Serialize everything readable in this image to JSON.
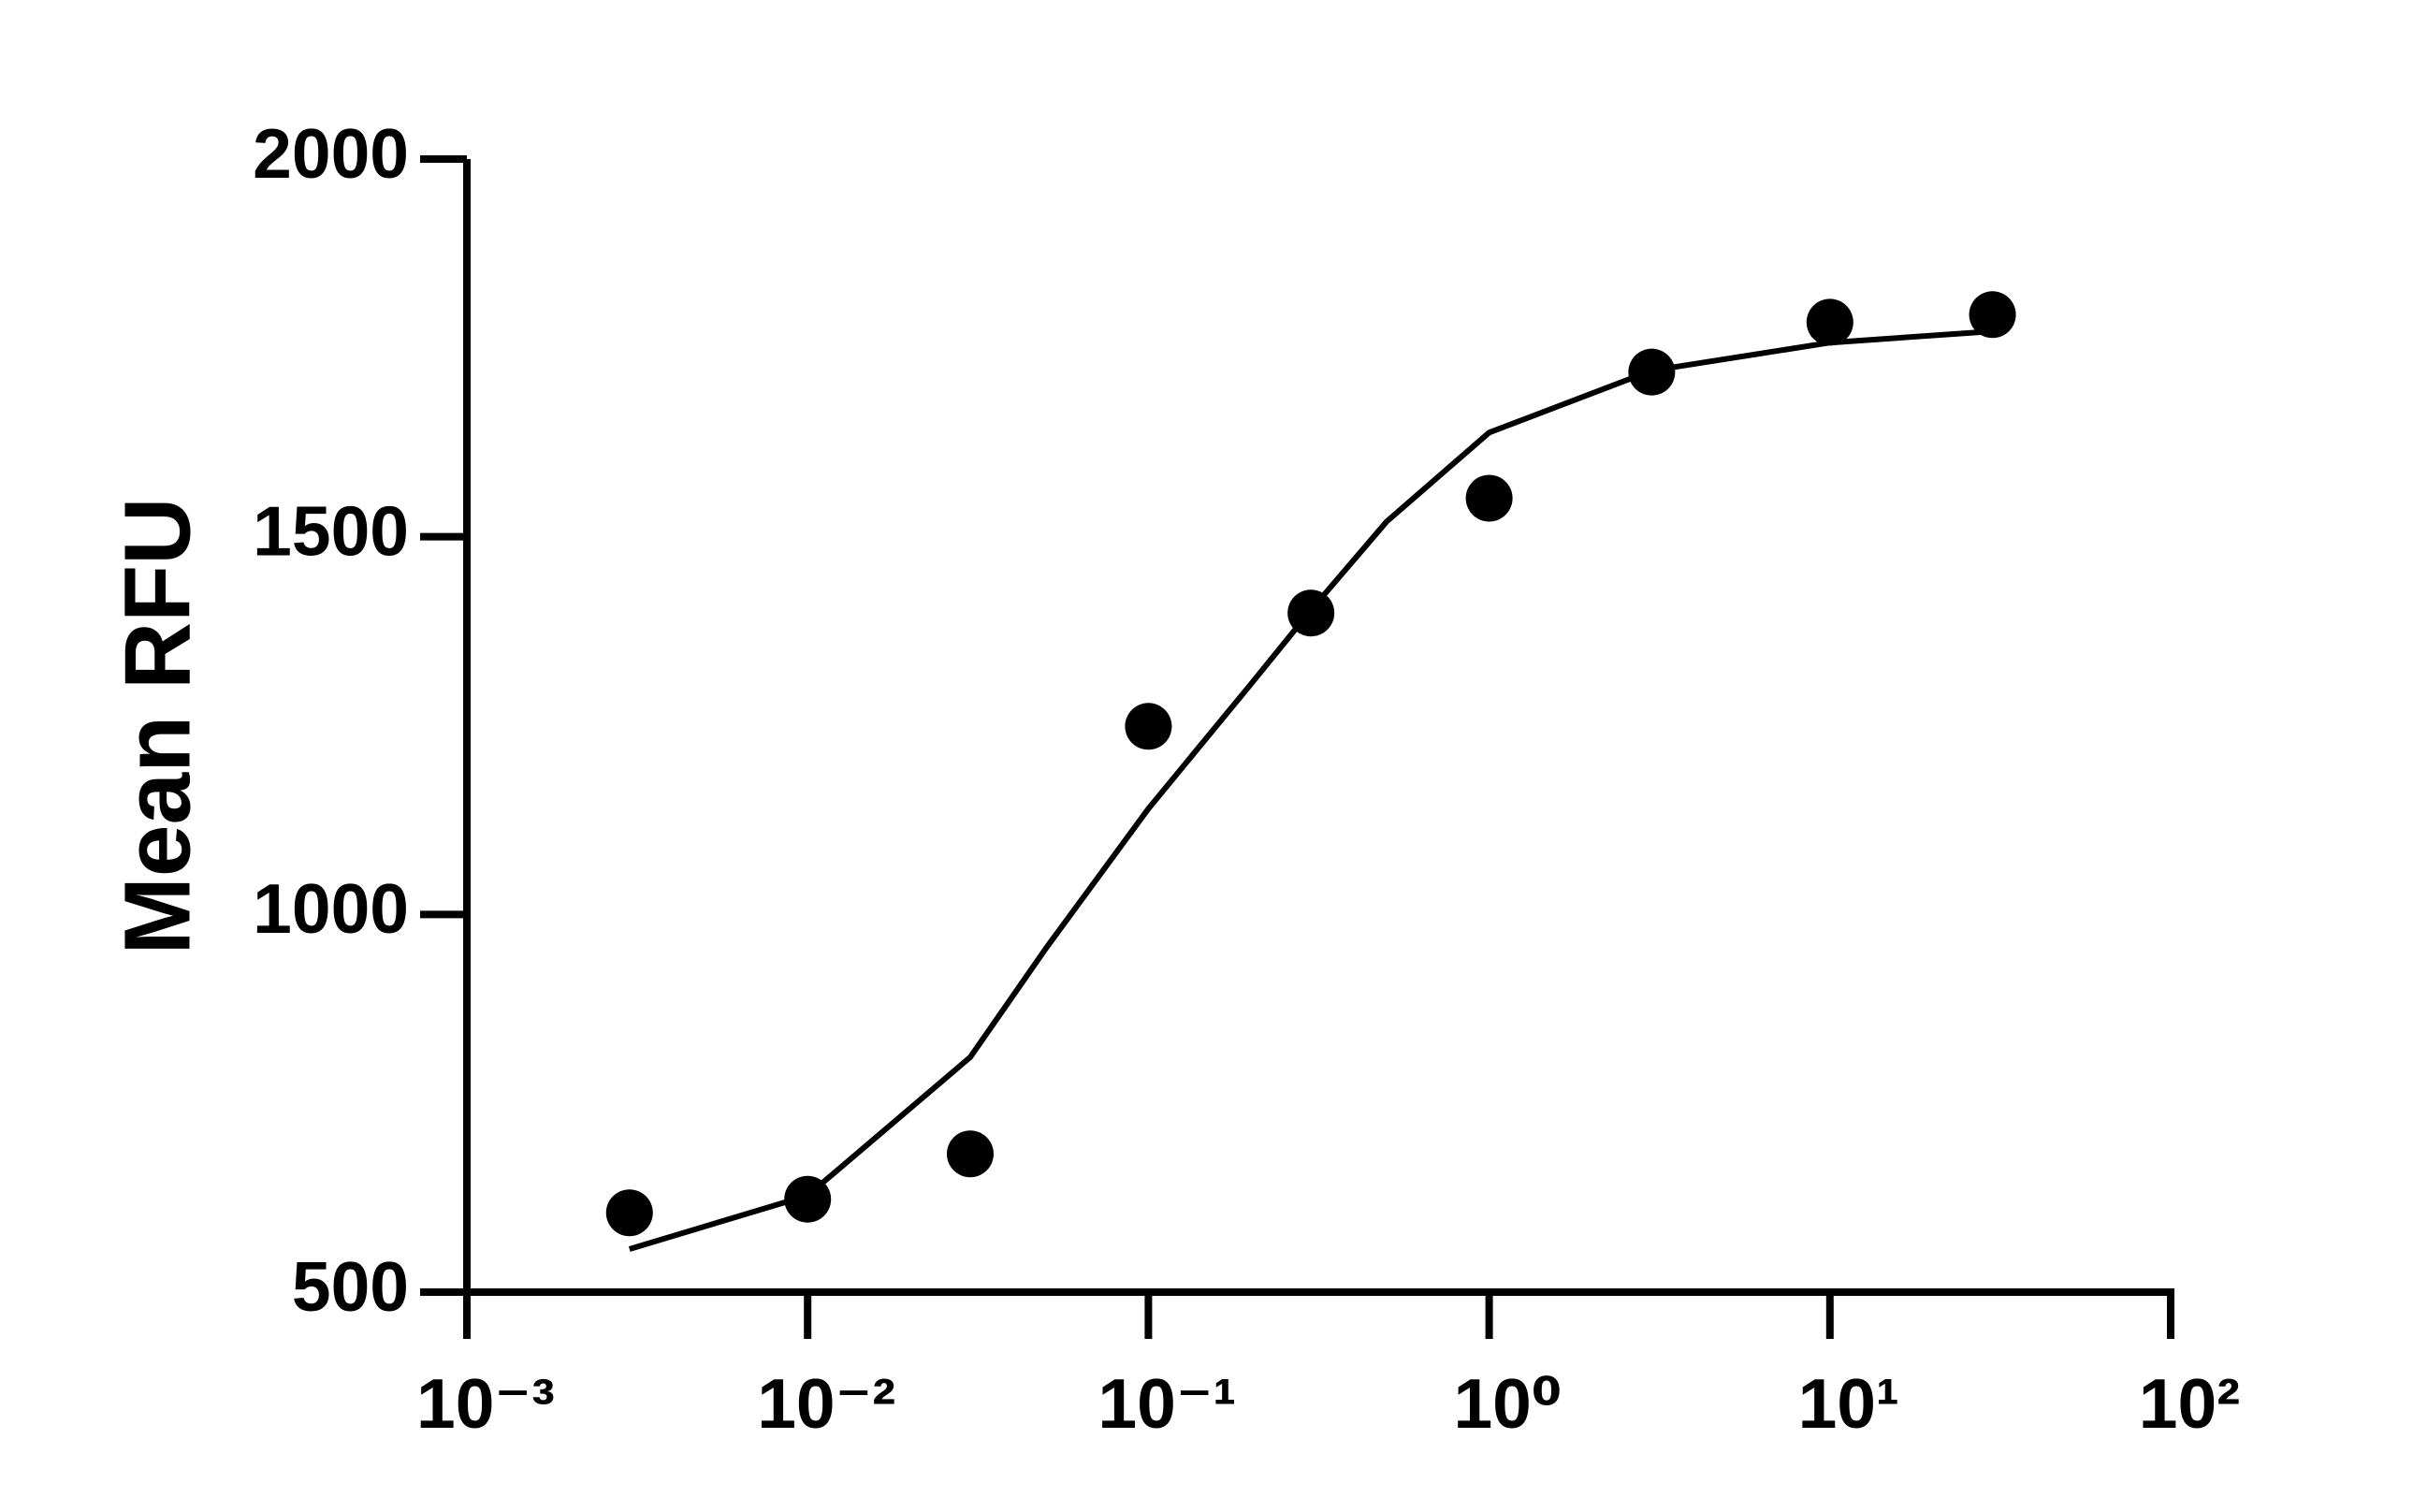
{
  "chart_data": {
    "type": "scatter",
    "y_label": "Mean RFU",
    "x_log": true,
    "xlim": [
      0.001,
      100
    ],
    "xticks": [
      {
        "value": 0.001,
        "label": "10⁻³"
      },
      {
        "value": 0.01,
        "label": "10⁻²"
      },
      {
        "value": 0.1,
        "label": "10⁻¹"
      },
      {
        "value": 1,
        "label": "10⁰"
      },
      {
        "value": 10,
        "label": "10¹"
      },
      {
        "value": 100,
        "label": "10²"
      }
    ],
    "ylim": [
      500,
      2000
    ],
    "yticks": [
      500,
      1000,
      1500,
      2000
    ],
    "color": "#000000",
    "x": [
      0.003,
      0.01,
      0.03,
      0.1,
      0.3,
      1,
      3,
      10,
      30
    ],
    "values": [
      605,
      623,
      683,
      1249,
      1399,
      1551,
      1718,
      1784,
      1794
    ],
    "fit": {
      "x": [
        0.003,
        0.01,
        0.03,
        0.05,
        0.1,
        0.2,
        0.3,
        0.5,
        1,
        3,
        10,
        30
      ],
      "values": [
        557,
        628,
        811,
        955,
        1140,
        1305,
        1403,
        1520,
        1638,
        1720,
        1757,
        1772
      ]
    }
  }
}
